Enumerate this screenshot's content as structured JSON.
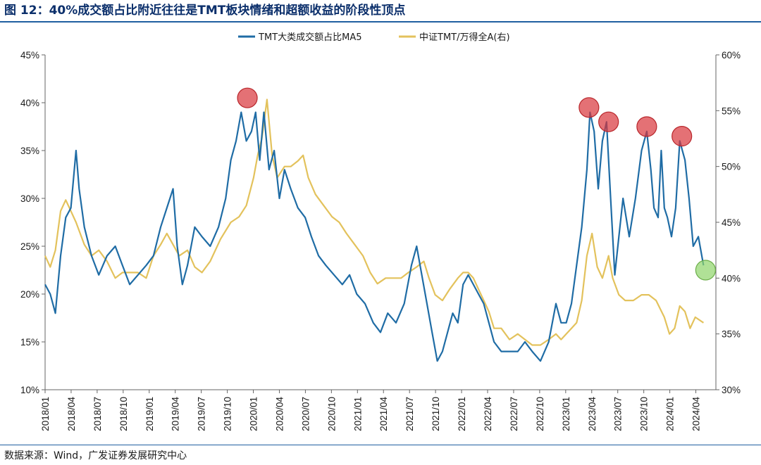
{
  "header": {
    "title": "图 12：40%成交额占比附近往往是TMT板块情绪和超额收益的阶段性顶点"
  },
  "footer": {
    "source": "数据来源：Wind，广发证券发展研究中心"
  },
  "chart_data": {
    "type": "line",
    "legend_position": "top-center",
    "grid": false,
    "x_labels": [
      "2018/01",
      "2018/04",
      "2018/07",
      "2018/10",
      "2019/01",
      "2019/04",
      "2019/07",
      "2019/10",
      "2020/01",
      "2020/04",
      "2020/07",
      "2020/10",
      "2021/01",
      "2021/04",
      "2021/07",
      "2021/10",
      "2022/01",
      "2022/04",
      "2022/07",
      "2022/10",
      "2023/01",
      "2023/04",
      "2023/07",
      "2023/10",
      "2024/01",
      "2024/04"
    ],
    "x_range": [
      2018.0,
      2024.5
    ],
    "y_left": {
      "range": [
        10,
        45
      ],
      "ticks": [
        "10%",
        "15%",
        "20%",
        "25%",
        "30%",
        "35%",
        "40%",
        "45%"
      ]
    },
    "y_right": {
      "range": [
        30,
        60
      ],
      "ticks": [
        "30%",
        "35%",
        "40%",
        "45%",
        "50%",
        "55%",
        "60%"
      ]
    },
    "series": [
      {
        "name": "TMT大类成交额占比MA5",
        "axis": "left",
        "color": "#1f6ca5",
        "points": [
          [
            2018.0,
            21
          ],
          [
            2018.05,
            20
          ],
          [
            2018.1,
            18
          ],
          [
            2018.15,
            24
          ],
          [
            2018.2,
            28
          ],
          [
            2018.25,
            29
          ],
          [
            2018.3,
            35
          ],
          [
            2018.33,
            31
          ],
          [
            2018.38,
            27
          ],
          [
            2018.45,
            24
          ],
          [
            2018.52,
            22
          ],
          [
            2018.6,
            24
          ],
          [
            2018.68,
            25
          ],
          [
            2018.75,
            23
          ],
          [
            2018.82,
            21
          ],
          [
            2018.9,
            22
          ],
          [
            2018.98,
            23
          ],
          [
            2019.05,
            24
          ],
          [
            2019.12,
            27
          ],
          [
            2019.18,
            29
          ],
          [
            2019.24,
            31
          ],
          [
            2019.28,
            25
          ],
          [
            2019.33,
            21
          ],
          [
            2019.38,
            23
          ],
          [
            2019.45,
            27
          ],
          [
            2019.52,
            26
          ],
          [
            2019.6,
            25
          ],
          [
            2019.68,
            27
          ],
          [
            2019.75,
            30
          ],
          [
            2019.8,
            34
          ],
          [
            2019.85,
            36
          ],
          [
            2019.9,
            39
          ],
          [
            2019.95,
            36
          ],
          [
            2020.0,
            37
          ],
          [
            2020.04,
            39
          ],
          [
            2020.08,
            34
          ],
          [
            2020.12,
            39
          ],
          [
            2020.17,
            33
          ],
          [
            2020.22,
            35
          ],
          [
            2020.27,
            30
          ],
          [
            2020.32,
            33
          ],
          [
            2020.38,
            31
          ],
          [
            2020.45,
            29
          ],
          [
            2020.52,
            28
          ],
          [
            2020.58,
            26
          ],
          [
            2020.65,
            24
          ],
          [
            2020.72,
            23
          ],
          [
            2020.8,
            22
          ],
          [
            2020.88,
            21
          ],
          [
            2020.95,
            22
          ],
          [
            2021.02,
            20
          ],
          [
            2021.1,
            19
          ],
          [
            2021.18,
            17
          ],
          [
            2021.25,
            16
          ],
          [
            2021.32,
            18
          ],
          [
            2021.4,
            17
          ],
          [
            2021.48,
            19
          ],
          [
            2021.55,
            23
          ],
          [
            2021.6,
            25
          ],
          [
            2021.65,
            22
          ],
          [
            2021.7,
            19
          ],
          [
            2021.75,
            16
          ],
          [
            2021.8,
            13
          ],
          [
            2021.85,
            14
          ],
          [
            2021.9,
            16
          ],
          [
            2021.95,
            18
          ],
          [
            2022.0,
            17
          ],
          [
            2022.05,
            21
          ],
          [
            2022.1,
            22
          ],
          [
            2022.15,
            21
          ],
          [
            2022.2,
            20
          ],
          [
            2022.25,
            19
          ],
          [
            2022.3,
            17
          ],
          [
            2022.35,
            15
          ],
          [
            2022.42,
            14
          ],
          [
            2022.5,
            14
          ],
          [
            2022.58,
            14
          ],
          [
            2022.65,
            15
          ],
          [
            2022.72,
            14
          ],
          [
            2022.8,
            13
          ],
          [
            2022.88,
            15
          ],
          [
            2022.95,
            19
          ],
          [
            2023.0,
            17
          ],
          [
            2023.05,
            17
          ],
          [
            2023.1,
            19
          ],
          [
            2023.15,
            23
          ],
          [
            2023.2,
            27
          ],
          [
            2023.25,
            33
          ],
          [
            2023.28,
            39
          ],
          [
            2023.32,
            37
          ],
          [
            2023.36,
            31
          ],
          [
            2023.4,
            36
          ],
          [
            2023.44,
            38
          ],
          [
            2023.48,
            30
          ],
          [
            2023.52,
            22
          ],
          [
            2023.56,
            26
          ],
          [
            2023.6,
            30
          ],
          [
            2023.66,
            26
          ],
          [
            2023.72,
            30
          ],
          [
            2023.78,
            35
          ],
          [
            2023.83,
            37
          ],
          [
            2023.87,
            33
          ],
          [
            2023.9,
            29
          ],
          [
            2023.94,
            28
          ],
          [
            2023.97,
            35
          ],
          [
            2024.0,
            29
          ],
          [
            2024.03,
            28
          ],
          [
            2024.07,
            26
          ],
          [
            2024.11,
            29
          ],
          [
            2024.15,
            36
          ],
          [
            2024.2,
            34
          ],
          [
            2024.24,
            30
          ],
          [
            2024.28,
            25
          ],
          [
            2024.33,
            26
          ],
          [
            2024.38,
            23
          ]
        ]
      },
      {
        "name": "中证TMT/万得全A(右)",
        "axis": "right",
        "color": "#e3c25c",
        "points": [
          [
            2018.0,
            42
          ],
          [
            2018.05,
            41
          ],
          [
            2018.1,
            42.5
          ],
          [
            2018.15,
            46
          ],
          [
            2018.2,
            47
          ],
          [
            2018.25,
            46
          ],
          [
            2018.3,
            45
          ],
          [
            2018.38,
            43
          ],
          [
            2018.45,
            42
          ],
          [
            2018.52,
            42.5
          ],
          [
            2018.6,
            41.5
          ],
          [
            2018.68,
            40
          ],
          [
            2018.75,
            40.5
          ],
          [
            2018.82,
            40.5
          ],
          [
            2018.9,
            40.5
          ],
          [
            2018.98,
            40
          ],
          [
            2019.05,
            42
          ],
          [
            2019.12,
            43
          ],
          [
            2019.18,
            44
          ],
          [
            2019.24,
            43
          ],
          [
            2019.3,
            42
          ],
          [
            2019.38,
            42.5
          ],
          [
            2019.45,
            41
          ],
          [
            2019.52,
            40.5
          ],
          [
            2019.6,
            41.5
          ],
          [
            2019.7,
            43.5
          ],
          [
            2019.8,
            45
          ],
          [
            2019.88,
            45.5
          ],
          [
            2019.95,
            46.5
          ],
          [
            2020.02,
            49
          ],
          [
            2020.06,
            51
          ],
          [
            2020.1,
            52.5
          ],
          [
            2020.15,
            56
          ],
          [
            2020.2,
            51
          ],
          [
            2020.25,
            49
          ],
          [
            2020.32,
            50
          ],
          [
            2020.38,
            50
          ],
          [
            2020.45,
            50.5
          ],
          [
            2020.5,
            51
          ],
          [
            2020.55,
            49
          ],
          [
            2020.62,
            47.5
          ],
          [
            2020.7,
            46.5
          ],
          [
            2020.78,
            45.5
          ],
          [
            2020.85,
            45
          ],
          [
            2020.92,
            44
          ],
          [
            2021.0,
            43
          ],
          [
            2021.08,
            42
          ],
          [
            2021.15,
            40.5
          ],
          [
            2021.22,
            39.5
          ],
          [
            2021.3,
            40
          ],
          [
            2021.38,
            40
          ],
          [
            2021.45,
            40
          ],
          [
            2021.52,
            40.5
          ],
          [
            2021.6,
            41
          ],
          [
            2021.67,
            41.5
          ],
          [
            2021.72,
            40
          ],
          [
            2021.78,
            38.5
          ],
          [
            2021.85,
            38
          ],
          [
            2021.92,
            39
          ],
          [
            2022.0,
            40
          ],
          [
            2022.05,
            40.5
          ],
          [
            2022.1,
            40.5
          ],
          [
            2022.15,
            40
          ],
          [
            2022.2,
            39
          ],
          [
            2022.25,
            38
          ],
          [
            2022.3,
            37
          ],
          [
            2022.35,
            35.5
          ],
          [
            2022.42,
            35.5
          ],
          [
            2022.5,
            34.5
          ],
          [
            2022.58,
            35
          ],
          [
            2022.65,
            34.5
          ],
          [
            2022.72,
            34
          ],
          [
            2022.8,
            34
          ],
          [
            2022.88,
            34.5
          ],
          [
            2022.95,
            35
          ],
          [
            2023.0,
            34.5
          ],
          [
            2023.05,
            35
          ],
          [
            2023.1,
            35.5
          ],
          [
            2023.15,
            36
          ],
          [
            2023.2,
            38
          ],
          [
            2023.25,
            42
          ],
          [
            2023.3,
            44
          ],
          [
            2023.35,
            41
          ],
          [
            2023.4,
            40
          ],
          [
            2023.46,
            42
          ],
          [
            2023.5,
            40
          ],
          [
            2023.56,
            38.5
          ],
          [
            2023.62,
            38
          ],
          [
            2023.7,
            38
          ],
          [
            2023.78,
            38.5
          ],
          [
            2023.85,
            38.5
          ],
          [
            2023.92,
            38
          ],
          [
            2024.0,
            36.5
          ],
          [
            2024.05,
            35
          ],
          [
            2024.1,
            35.5
          ],
          [
            2024.15,
            37.5
          ],
          [
            2024.2,
            37
          ],
          [
            2024.25,
            35.5
          ],
          [
            2024.3,
            36.5
          ],
          [
            2024.38,
            36
          ]
        ]
      }
    ],
    "highlights": [
      {
        "x": 2019.96,
        "y": 40.5,
        "axis": "left",
        "color": "#d9343a"
      },
      {
        "x": 2023.27,
        "y": 39.5,
        "axis": "left",
        "color": "#d9343a"
      },
      {
        "x": 2023.46,
        "y": 38.0,
        "axis": "left",
        "color": "#d9343a"
      },
      {
        "x": 2023.83,
        "y": 37.5,
        "axis": "left",
        "color": "#d9343a"
      },
      {
        "x": 2024.17,
        "y": 36.5,
        "axis": "left",
        "color": "#d9343a"
      },
      {
        "x": 2024.4,
        "y": 22.5,
        "axis": "left",
        "color": "#8fd46a"
      }
    ]
  }
}
